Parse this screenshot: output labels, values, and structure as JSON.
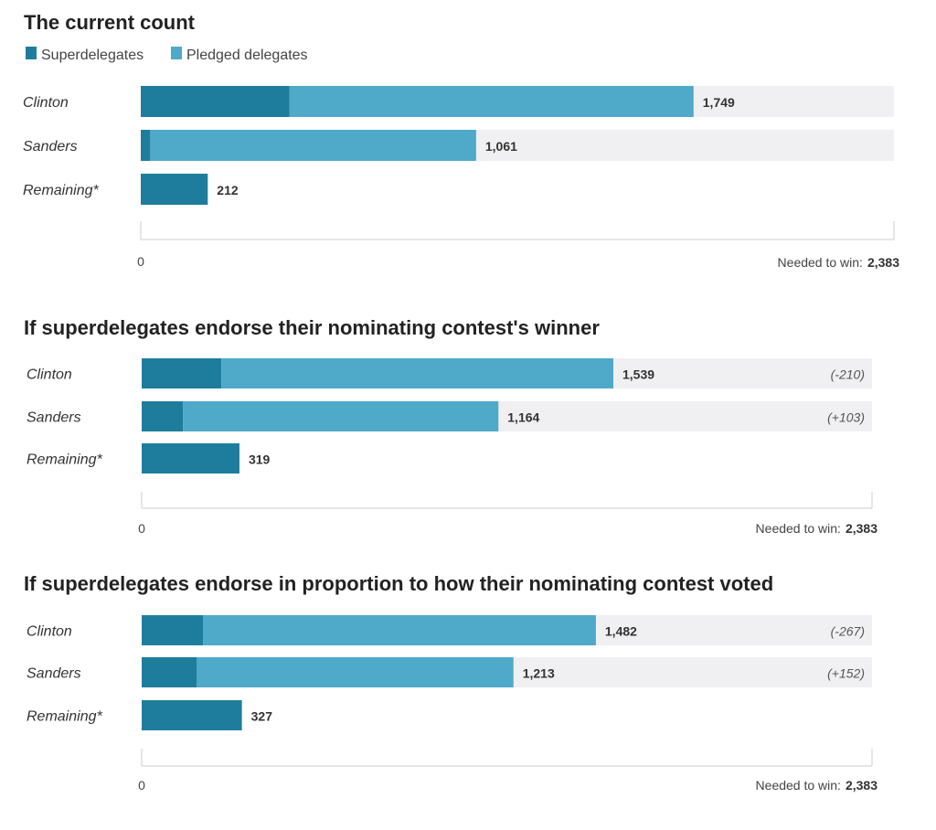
{
  "legend": {
    "super_label": "Superdelegates",
    "pledged_label": "Pledged delegates"
  },
  "colors": {
    "super": "#1e7d9c",
    "pledged": "#4fa9c9",
    "remaining": "#1e7d9c",
    "track": "#f0eff1",
    "axis": "#cccccc"
  },
  "chart_data": [
    {
      "type": "bar",
      "title": "The current count",
      "axis_min_label": "0",
      "needed_prefix": "Needed to win:",
      "needed_value": "2,383",
      "xlim": [
        0,
        2383
      ],
      "rows": [
        {
          "label": "Clinton",
          "total": 1749,
          "super": 470,
          "value_label": "1,749",
          "delta": ""
        },
        {
          "label": "Sanders",
          "total": 1061,
          "super": 30,
          "value_label": "1,061",
          "delta": ""
        },
        {
          "label": "Remaining*",
          "total": 212,
          "super": 0,
          "value_label": "212",
          "delta": ""
        }
      ]
    },
    {
      "type": "bar",
      "title": "If superdelegates endorse their nominating contest's winner",
      "axis_min_label": "0",
      "needed_prefix": "Needed to win:",
      "needed_value": "2,383",
      "xlim": [
        0,
        2383
      ],
      "rows": [
        {
          "label": "Clinton",
          "total": 1539,
          "super": 260,
          "value_label": "1,539",
          "delta": "(-210)"
        },
        {
          "label": "Sanders",
          "total": 1164,
          "super": 135,
          "value_label": "1,164",
          "delta": "(+103)"
        },
        {
          "label": "Remaining*",
          "total": 319,
          "super": 0,
          "value_label": "319",
          "delta": ""
        }
      ]
    },
    {
      "type": "bar",
      "title": "If superdelegates endorse in proportion to how their nominating contest voted",
      "axis_min_label": "0",
      "needed_prefix": "Needed to win:",
      "needed_value": "2,383",
      "xlim": [
        0,
        2383
      ],
      "rows": [
        {
          "label": "Clinton",
          "total": 1482,
          "super": 200,
          "value_label": "1,482",
          "delta": "(-267)"
        },
        {
          "label": "Sanders",
          "total": 1213,
          "super": 180,
          "value_label": "1,213",
          "delta": "(+152)"
        },
        {
          "label": "Remaining*",
          "total": 327,
          "super": 0,
          "value_label": "327",
          "delta": ""
        }
      ]
    }
  ]
}
